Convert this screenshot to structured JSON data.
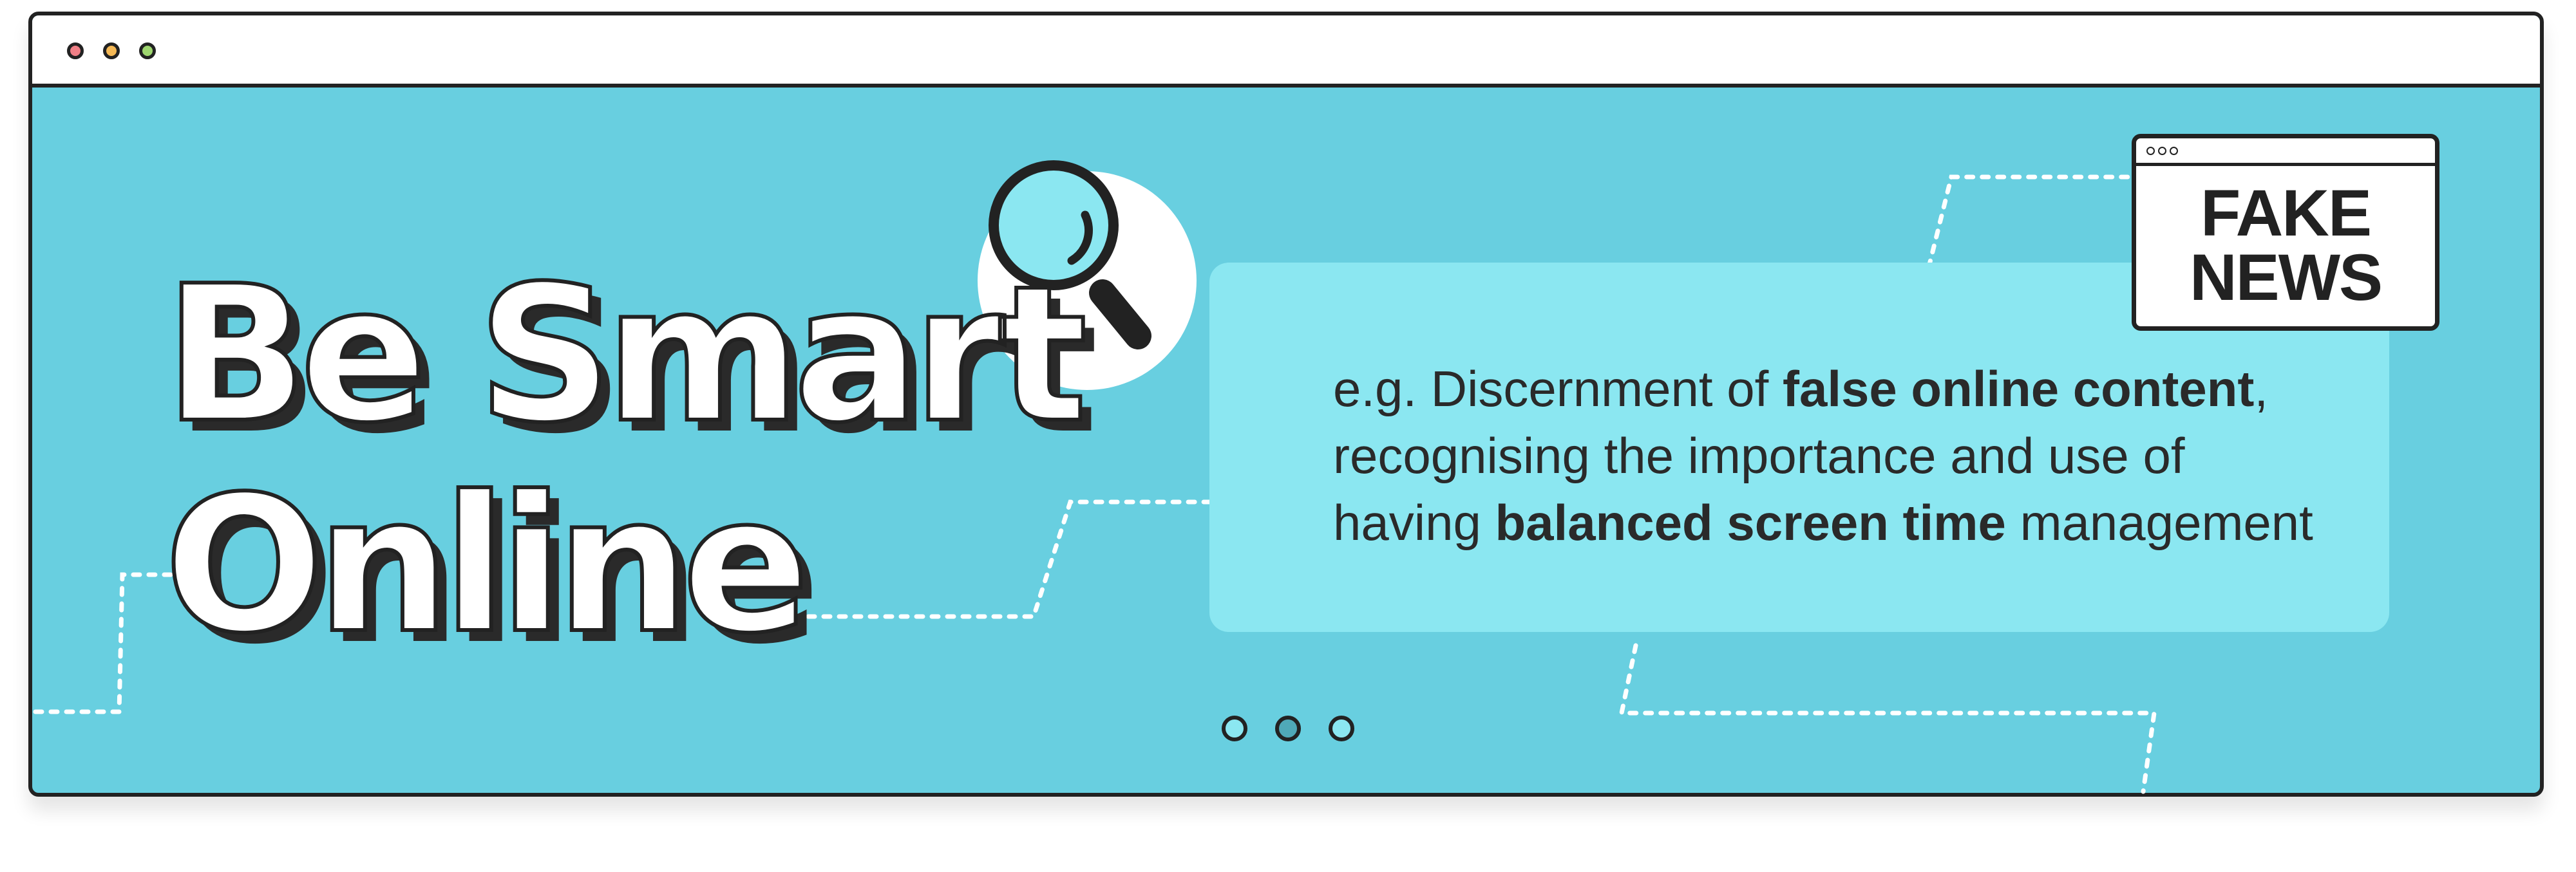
{
  "window": {
    "title_bar_dots": [
      "red",
      "orange",
      "green"
    ],
    "colors": {
      "background": "#68cfe0",
      "card": "#8be7f1",
      "outline": "#222222"
    }
  },
  "headline": {
    "line1": "Be Smart",
    "line2": "Online"
  },
  "badge": {
    "line1": "FAKE",
    "line2": "NEWS"
  },
  "description": {
    "line1_prefix": "e.g. Discernment of ",
    "line1_bold": "false online content",
    "line1_suffix": ",",
    "line2": "recognising the importance and use of",
    "line3_prefix": "having ",
    "line3_bold": "balanced screen time",
    "line3_suffix": " management"
  },
  "icons": {
    "magnifier": "magnifying-glass-icon"
  },
  "pagination": {
    "dots": 3,
    "active_index": 1
  }
}
